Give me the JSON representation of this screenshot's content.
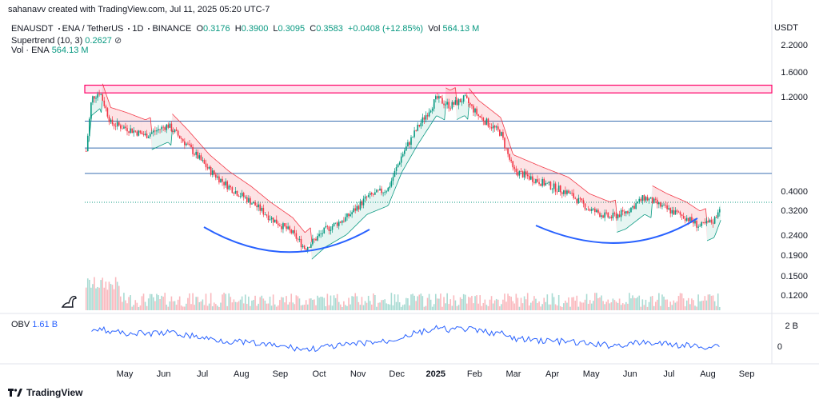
{
  "header": {
    "credit": "sahanavv created with TradingView.com, Jul 11, 2025 05:20 UTC-7",
    "currency": "USDT"
  },
  "legend": {
    "symbol": "ENAUSDT",
    "pair": "ENA / TetherUS",
    "timeframe": "1D",
    "exchange": "BINANCE",
    "o_label": "O",
    "o": "0.3176",
    "h_label": "H",
    "h": "0.3900",
    "l_label": "L",
    "l": "0.3095",
    "c_label": "C",
    "c": "0.3583",
    "change": "+0.0408 (+12.85%)",
    "vol_label": "Vol",
    "vol": "564.13 M",
    "supertrend_label": "Supertrend (10, 3)",
    "supertrend_value": "0.2627",
    "volume_label": "Vol · ENA",
    "volume_value": "564.13 M",
    "obv_label": "OBV",
    "obv_value": "1.61 B"
  },
  "price_tags": [
    {
      "label": "0.9219",
      "color": "#2962ff"
    },
    {
      "label": "0.6741",
      "color": "#2962ff"
    },
    {
      "label": "0.5015",
      "color": "#2962ff"
    },
    {
      "label": "0.3583",
      "color": "#089981"
    }
  ],
  "obv_axis": [
    "2 B",
    "0"
  ],
  "brand": "TradingView",
  "chart_data": {
    "type": "candlestick",
    "scale": "log",
    "y_ticks": [
      2.2,
      1.6,
      1.2,
      0.4,
      0.32,
      0.24,
      0.19,
      0.15,
      0.12
    ],
    "y_tick_labels": [
      "2.2000",
      "1.6000",
      "1.2000",
      "0.4000",
      "0.3200",
      "0.2400",
      "0.1900",
      "0.1500",
      "0.1200"
    ],
    "x_ticks": [
      "May",
      "Jun",
      "Jul",
      "Aug",
      "Sep",
      "Oct",
      "Nov",
      "Dec",
      "2025",
      "Feb",
      "Mar",
      "Apr",
      "May",
      "Jun",
      "Jul",
      "Aug",
      "Sep"
    ],
    "horizontal_levels": [
      0.9219,
      0.6741,
      0.5015
    ],
    "resistance_zone": [
      1.28,
      1.4
    ],
    "close_path": [
      {
        "x": "Apr 02",
        "y": 0.65
      },
      {
        "x": "Apr 06",
        "y": 1.2
      },
      {
        "x": "Apr 12",
        "y": 1.3
      },
      {
        "x": "Apr 20",
        "y": 0.9
      },
      {
        "x": "May 01",
        "y": 0.85
      },
      {
        "x": "May 15",
        "y": 0.78
      },
      {
        "x": "Jun 01",
        "y": 0.88
      },
      {
        "x": "Jun 15",
        "y": 0.7
      },
      {
        "x": "Jul 01",
        "y": 0.52
      },
      {
        "x": "Jul 15",
        "y": 0.43
      },
      {
        "x": "Aug 01",
        "y": 0.36
      },
      {
        "x": "Aug 15",
        "y": 0.3
      },
      {
        "x": "Sep 01",
        "y": 0.25
      },
      {
        "x": "Sep 10",
        "y": 0.21
      },
      {
        "x": "Sep 25",
        "y": 0.26
      },
      {
        "x": "Oct 10",
        "y": 0.3
      },
      {
        "x": "Oct 25",
        "y": 0.38
      },
      {
        "x": "Nov 10",
        "y": 0.42
      },
      {
        "x": "Nov 20",
        "y": 0.62
      },
      {
        "x": "Dec 01",
        "y": 0.85
      },
      {
        "x": "Dec 15",
        "y": 1.2
      },
      {
        "x": "Dec 25",
        "y": 1.1
      },
      {
        "x": "Jan 05",
        "y": 1.2
      },
      {
        "x": "Jan 15",
        "y": 0.98
      },
      {
        "x": "Feb 01",
        "y": 0.8
      },
      {
        "x": "Feb 10",
        "y": 0.52
      },
      {
        "x": "Mar 01",
        "y": 0.45
      },
      {
        "x": "Mar 20",
        "y": 0.4
      },
      {
        "x": "Apr 05",
        "y": 0.33
      },
      {
        "x": "Apr 20",
        "y": 0.3
      },
      {
        "x": "May 01",
        "y": 0.32
      },
      {
        "x": "May 15",
        "y": 0.38
      },
      {
        "x": "Jun 01",
        "y": 0.33
      },
      {
        "x": "Jun 15",
        "y": 0.3
      },
      {
        "x": "Jun 25",
        "y": 0.27
      },
      {
        "x": "Jul 05",
        "y": 0.29
      },
      {
        "x": "Jul 10",
        "y": 0.3583
      }
    ],
    "cup_arcs": 2,
    "current_price": 0.3583,
    "colors": {
      "up": "#089981",
      "down": "#f23645",
      "level": "#2962ff",
      "zone": "#ff0066",
      "arc": "#2962ff",
      "obv": "#2962ff"
    }
  }
}
